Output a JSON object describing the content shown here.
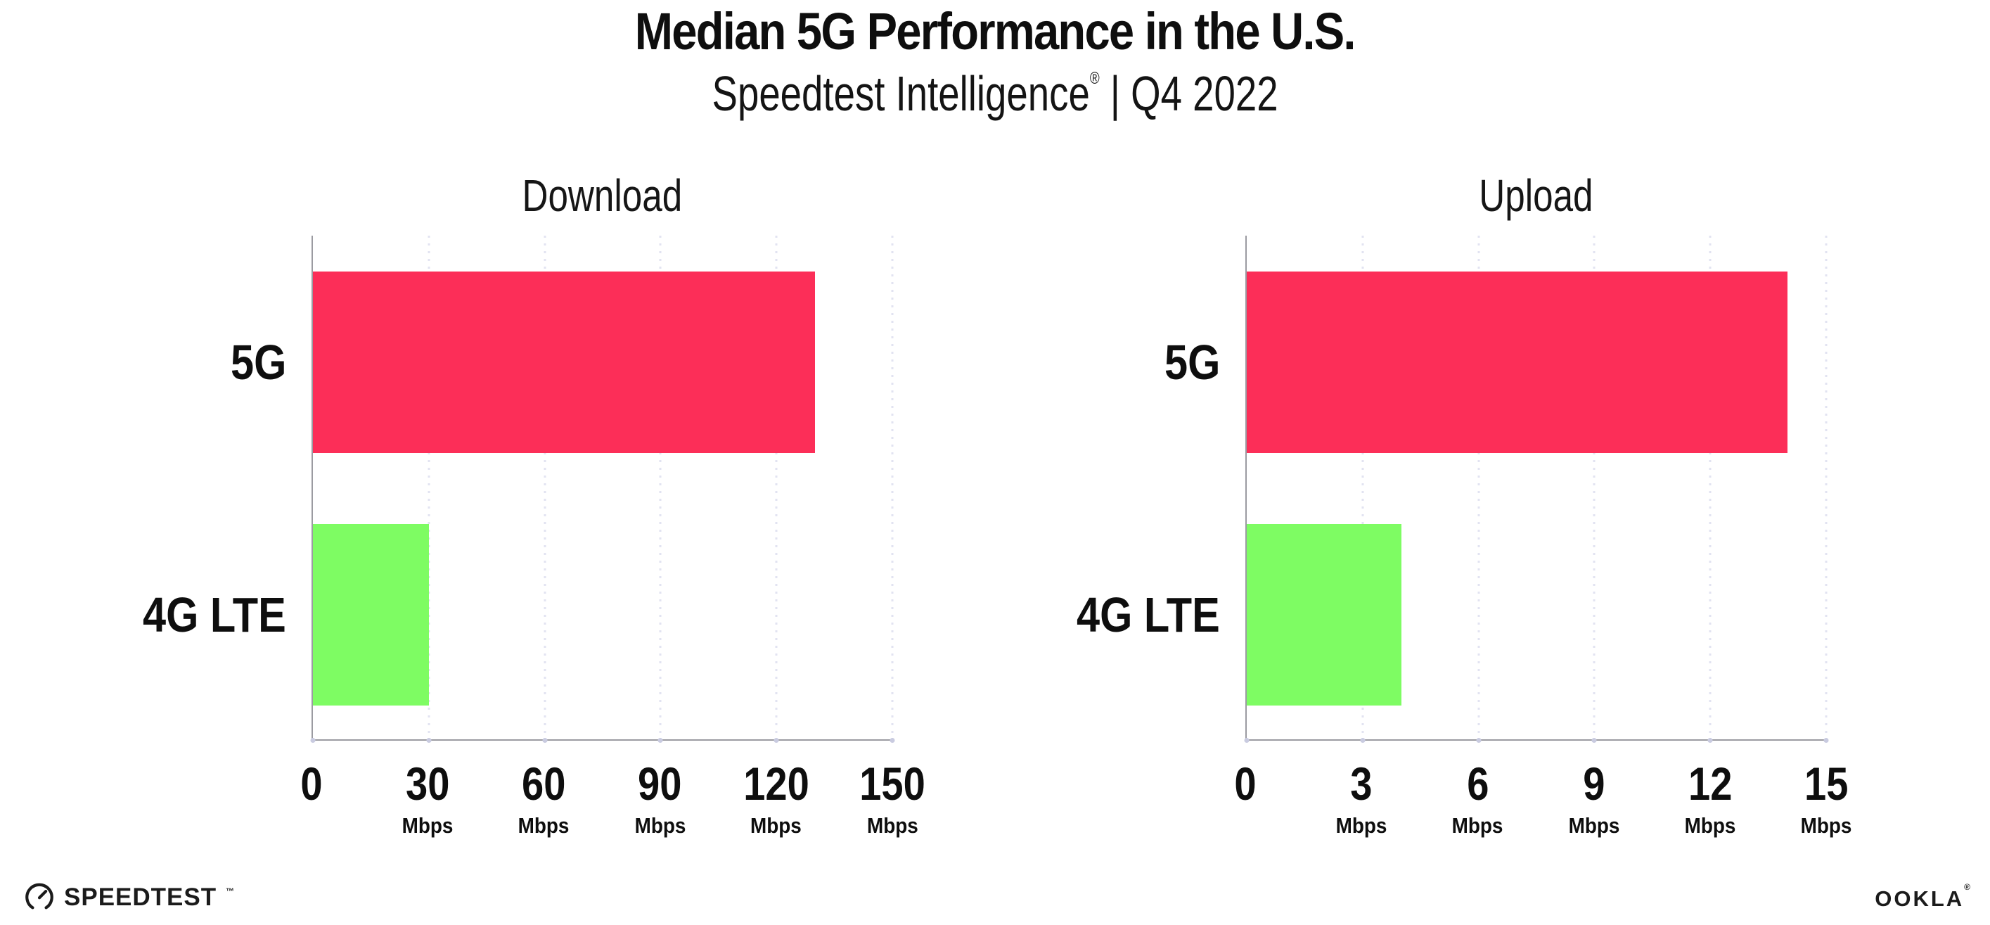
{
  "header": {
    "title": "Median 5G Performance in the U.S.",
    "subtitle_main": "Speedtest Intelligence",
    "subtitle_reg": "®",
    "subtitle_rest": " | Q4 2022"
  },
  "colors": {
    "bar_5g": "#FC2E58",
    "bar_4g": "#7EFC63",
    "grid": "#E2E3F1",
    "axis": "#9B9BA1",
    "axis_dot": "#C9CBE0",
    "text": "#0E0E0E"
  },
  "chart_data": [
    {
      "type": "bar",
      "orientation": "horizontal",
      "title": "Download",
      "categories": [
        "5G",
        "4G LTE"
      ],
      "values": [
        130,
        30
      ],
      "value_unit": "Mbps",
      "xlim": [
        0,
        150
      ],
      "xticks": [
        0,
        30,
        60,
        90,
        120,
        150
      ],
      "xtick_labels": [
        "0",
        "30",
        "60",
        "90",
        "120",
        "150"
      ],
      "xtick_sublabels": [
        "",
        "Mbps",
        "Mbps",
        "Mbps",
        "Mbps",
        "Mbps"
      ],
      "grid": "dotted-vertical",
      "legend": "none",
      "bar_colors": [
        "#FC2E58",
        "#7EFC63"
      ]
    },
    {
      "type": "bar",
      "orientation": "horizontal",
      "title": "Upload",
      "categories": [
        "5G",
        "4G LTE"
      ],
      "values": [
        14,
        4
      ],
      "value_unit": "Mbps",
      "xlim": [
        0,
        15
      ],
      "xticks": [
        0,
        3,
        6,
        9,
        12,
        15
      ],
      "xtick_labels": [
        "0",
        "3",
        "6",
        "9",
        "12",
        "15"
      ],
      "xtick_sublabels": [
        "",
        "Mbps",
        "Mbps",
        "Mbps",
        "Mbps",
        "Mbps"
      ],
      "grid": "dotted-vertical",
      "legend": "none",
      "bar_colors": [
        "#FC2E58",
        "#7EFC63"
      ]
    }
  ],
  "footer": {
    "speedtest_label": "SPEEDTEST",
    "speedtest_tm": "™",
    "ookla_label": "OOKLA",
    "ookla_reg": "®"
  }
}
